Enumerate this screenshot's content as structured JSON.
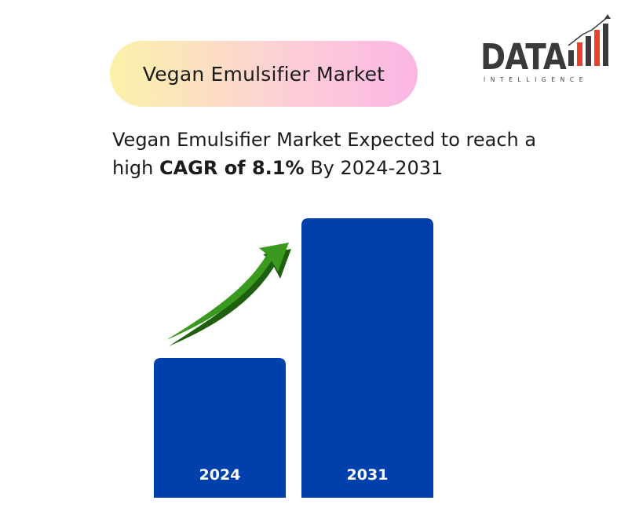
{
  "header": {
    "pill_title": "Vegan Emulsifier Market",
    "headline_prefix": "Vegan Emulsifier Market Expected to reach a high",
    "headline_bold": "CAGR of 8.1%",
    "headline_suffix": "By 2024-2031"
  },
  "logo": {
    "word": "DATA",
    "sub": "INTELLIGENCE",
    "icon": "rising-bars-icon"
  },
  "colors": {
    "bar": "#0040ad",
    "arrow": "#3a9a1f",
    "arrow_shadow": "#1f5f10",
    "logo_text": "#3a3a3a",
    "logo_bar_red": "#e8402a",
    "logo_bar_dark": "#3a3a3a"
  },
  "chart_data": {
    "type": "bar",
    "categories": [
      "2024",
      "2031"
    ],
    "values": [
      1.0,
      2.0
    ],
    "annotation": "growth-arrow-icon"
  }
}
